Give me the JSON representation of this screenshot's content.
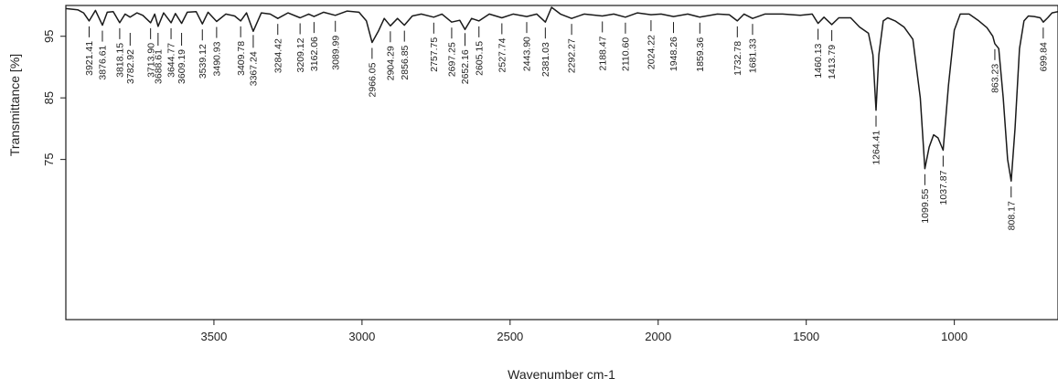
{
  "chart_data": {
    "type": "line",
    "title": "",
    "xlabel": "Wavenumber cm-1",
    "ylabel": "Transmittance [%]",
    "x_reversed": true,
    "xlim": [
      4000,
      650
    ],
    "ylim": [
      49,
      100
    ],
    "x_ticks": [
      3500,
      3000,
      2500,
      2000,
      1500,
      1000
    ],
    "y_ticks": [
      95,
      85,
      75
    ],
    "grid": false,
    "legend": "none",
    "line_color": "#1a1a1a",
    "series": [
      {
        "x": [
          4000,
          3960,
          3940,
          3921.41,
          3900,
          3876.61,
          3860,
          3840,
          3818.15,
          3800,
          3782.92,
          3760,
          3740,
          3713.9,
          3700,
          3688.61,
          3670,
          3644.77,
          3630,
          3609.19,
          3590,
          3560,
          3539.12,
          3520,
          3490.93,
          3460,
          3430,
          3409.78,
          3390,
          3367.24,
          3340,
          3310,
          3284.42,
          3250,
          3209.12,
          3180,
          3162.06,
          3130,
          3089.99,
          3050,
          3010,
          2985,
          2966.05,
          2945,
          2925,
          2904.29,
          2880,
          2856.85,
          2830,
          2800,
          2757.75,
          2730,
          2697.25,
          2670,
          2652.16,
          2630,
          2605.15,
          2570,
          2527.74,
          2490,
          2443.9,
          2410,
          2381.03,
          2360,
          2330,
          2292.27,
          2250,
          2188.47,
          2150,
          2110.6,
          2070,
          2024.22,
          1990,
          1948.26,
          1900,
          1859.36,
          1800,
          1760,
          1732.78,
          1710,
          1681.33,
          1640,
          1580,
          1520,
          1480,
          1460.13,
          1440,
          1413.79,
          1390,
          1350,
          1320,
          1290,
          1275,
          1264.41,
          1255,
          1240,
          1225,
          1200,
          1170,
          1140,
          1115,
          1099.55,
          1085,
          1070,
          1055,
          1037.87,
          1020,
          1000,
          980,
          950,
          920,
          890,
          870,
          863.23,
          850,
          835,
          820,
          808.17,
          795,
          780,
          765,
          750,
          730,
          710,
          699.84,
          685,
          670,
          650
        ],
        "y": [
          99.5,
          99.3,
          98.8,
          97.5,
          99.2,
          96.8,
          98.9,
          99.0,
          97.2,
          98.6,
          98.1,
          98.8,
          98.4,
          97.2,
          98.6,
          96.6,
          98.8,
          97.2,
          98.7,
          97.1,
          98.9,
          99.0,
          97.0,
          98.9,
          97.4,
          98.6,
          98.3,
          97.5,
          98.8,
          95.8,
          98.8,
          98.6,
          97.9,
          98.8,
          98.0,
          98.6,
          98.2,
          98.9,
          98.4,
          99.1,
          98.9,
          97.5,
          94.0,
          95.8,
          97.9,
          96.7,
          97.9,
          96.8,
          98.3,
          98.6,
          98.1,
          98.6,
          97.3,
          97.6,
          96.1,
          97.9,
          97.5,
          98.6,
          98.0,
          98.6,
          98.2,
          98.6,
          97.3,
          99.7,
          98.6,
          97.9,
          98.6,
          98.3,
          98.6,
          98.1,
          98.8,
          98.5,
          98.6,
          98.2,
          98.6,
          98.1,
          98.6,
          98.5,
          97.5,
          98.6,
          97.9,
          98.6,
          98.6,
          98.4,
          98.6,
          97.1,
          98.1,
          96.9,
          98.0,
          98.0,
          96.5,
          95.5,
          92.0,
          83.0,
          92.0,
          97.5,
          98.0,
          97.5,
          96.5,
          94.5,
          85.0,
          73.5,
          77.0,
          79.0,
          78.5,
          76.5,
          87.0,
          96.0,
          98.6,
          98.6,
          97.6,
          96.4,
          95.0,
          93.8,
          93.0,
          85.0,
          75.0,
          71.5,
          80.0,
          93.0,
          97.5,
          98.3,
          98.2,
          98.0,
          97.3,
          98.0,
          98.8,
          99.0
        ]
      }
    ],
    "annotations": [
      {
        "x": 3921.41,
        "label": "3921.41",
        "side": "top"
      },
      {
        "x": 3876.61,
        "label": "3876.61",
        "side": "top"
      },
      {
        "x": 3818.15,
        "label": "3818.15",
        "side": "top"
      },
      {
        "x": 3782.92,
        "label": "3782.92",
        "side": "bottom"
      },
      {
        "x": 3713.9,
        "label": "3713.90",
        "side": "top"
      },
      {
        "x": 3688.61,
        "label": "3688.61",
        "side": "bottom"
      },
      {
        "x": 3644.77,
        "label": "3644.77",
        "side": "top"
      },
      {
        "x": 3609.19,
        "label": "3609.19",
        "side": "bottom"
      },
      {
        "x": 3539.12,
        "label": "3539.12",
        "side": "top"
      },
      {
        "x": 3490.93,
        "label": "3490.93",
        "side": "top"
      },
      {
        "x": 3409.78,
        "label": "3409.78",
        "side": "top"
      },
      {
        "x": 3367.24,
        "label": "3367.24",
        "side": "bottom"
      },
      {
        "x": 3284.42,
        "label": "3284.42",
        "side": "top"
      },
      {
        "x": 3209.12,
        "label": "3209.12",
        "side": "top"
      },
      {
        "x": 3162.06,
        "label": "3162.06",
        "side": "top"
      },
      {
        "x": 3089.99,
        "label": "3089.99",
        "side": "top"
      },
      {
        "x": 2966.05,
        "label": "2966.05",
        "side": "top"
      },
      {
        "x": 2904.29,
        "label": "2904.29",
        "side": "top"
      },
      {
        "x": 2856.85,
        "label": "2856.85",
        "side": "top"
      },
      {
        "x": 2757.75,
        "label": "2757.75",
        "side": "top"
      },
      {
        "x": 2697.25,
        "label": "2697.25",
        "side": "top"
      },
      {
        "x": 2652.16,
        "label": "2652.16",
        "side": "bottom"
      },
      {
        "x": 2605.15,
        "label": "2605.15",
        "side": "top"
      },
      {
        "x": 2527.74,
        "label": "2527.74",
        "side": "top"
      },
      {
        "x": 2443.9,
        "label": "2443.90",
        "side": "top"
      },
      {
        "x": 2381.03,
        "label": "2381.03",
        "side": "top"
      },
      {
        "x": 2292.27,
        "label": "2292.27",
        "side": "top"
      },
      {
        "x": 2188.47,
        "label": "2188.47",
        "side": "top"
      },
      {
        "x": 2110.6,
        "label": "2110.60",
        "side": "top"
      },
      {
        "x": 2024.22,
        "label": "2024.22",
        "side": "top"
      },
      {
        "x": 1948.26,
        "label": "1948.26",
        "side": "top"
      },
      {
        "x": 1859.36,
        "label": "1859.36",
        "side": "top"
      },
      {
        "x": 1732.78,
        "label": "1732.78",
        "side": "top"
      },
      {
        "x": 1681.33,
        "label": "1681.33",
        "side": "top"
      },
      {
        "x": 1460.13,
        "label": "1460.13",
        "side": "top"
      },
      {
        "x": 1413.79,
        "label": "1413.79",
        "side": "top"
      },
      {
        "x": 1264.41,
        "label": "1264.41",
        "side": "top"
      },
      {
        "x": 1099.55,
        "label": "1099.55",
        "side": "top"
      },
      {
        "x": 1037.87,
        "label": "1037.87",
        "side": "top"
      },
      {
        "x": 863.23,
        "label": "863.23",
        "side": "top"
      },
      {
        "x": 808.17,
        "label": "808.17",
        "side": "top"
      },
      {
        "x": 699.84,
        "label": "699.84",
        "side": "top"
      }
    ]
  }
}
